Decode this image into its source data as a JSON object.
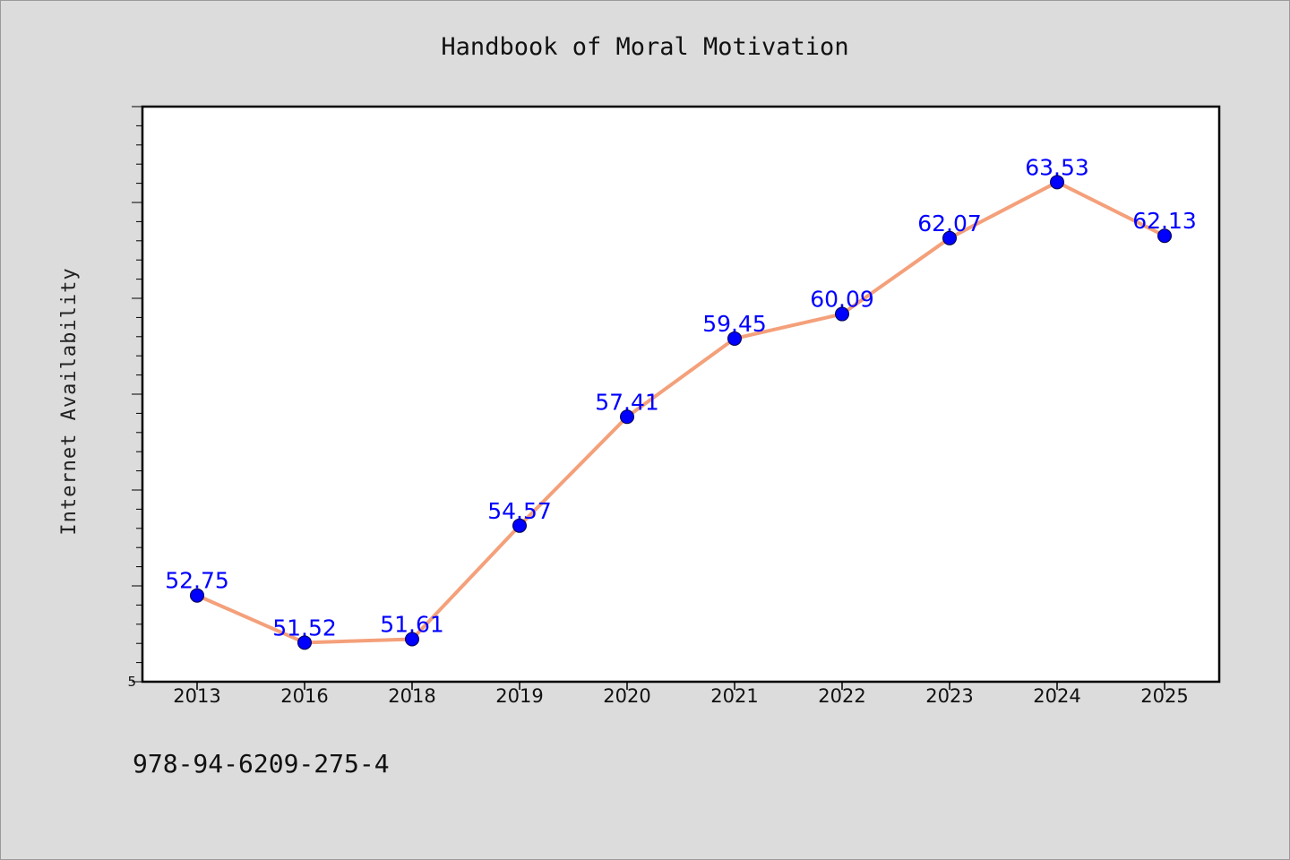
{
  "chart_data": {
    "type": "line",
    "title": "Handbook of Moral Motivation",
    "ylabel": "Internet Availability",
    "xlabel": "",
    "categories": [
      "2013",
      "2016",
      "2018",
      "2019",
      "2020",
      "2021",
      "2022",
      "2023",
      "2024",
      "2025"
    ],
    "series": [
      {
        "values": [
          52.75,
          51.52,
          51.61,
          54.57,
          57.41,
          59.45,
          60.09,
          62.07,
          63.53,
          62.13
        ],
        "labels": [
          "52.75",
          "51.52",
          "51.61",
          "54.57",
          "57.41",
          "59.45",
          "60.09",
          "62.07",
          "63.53",
          "62.13"
        ],
        "line_color": "#f4a07a",
        "marker_color": "#0000ff"
      }
    ],
    "ylim": [
      50.5,
      65.5
    ],
    "ytick_label": "5",
    "grid": false,
    "legend": "none"
  },
  "footer": {
    "isbn": "978-94-6209-275-4"
  }
}
